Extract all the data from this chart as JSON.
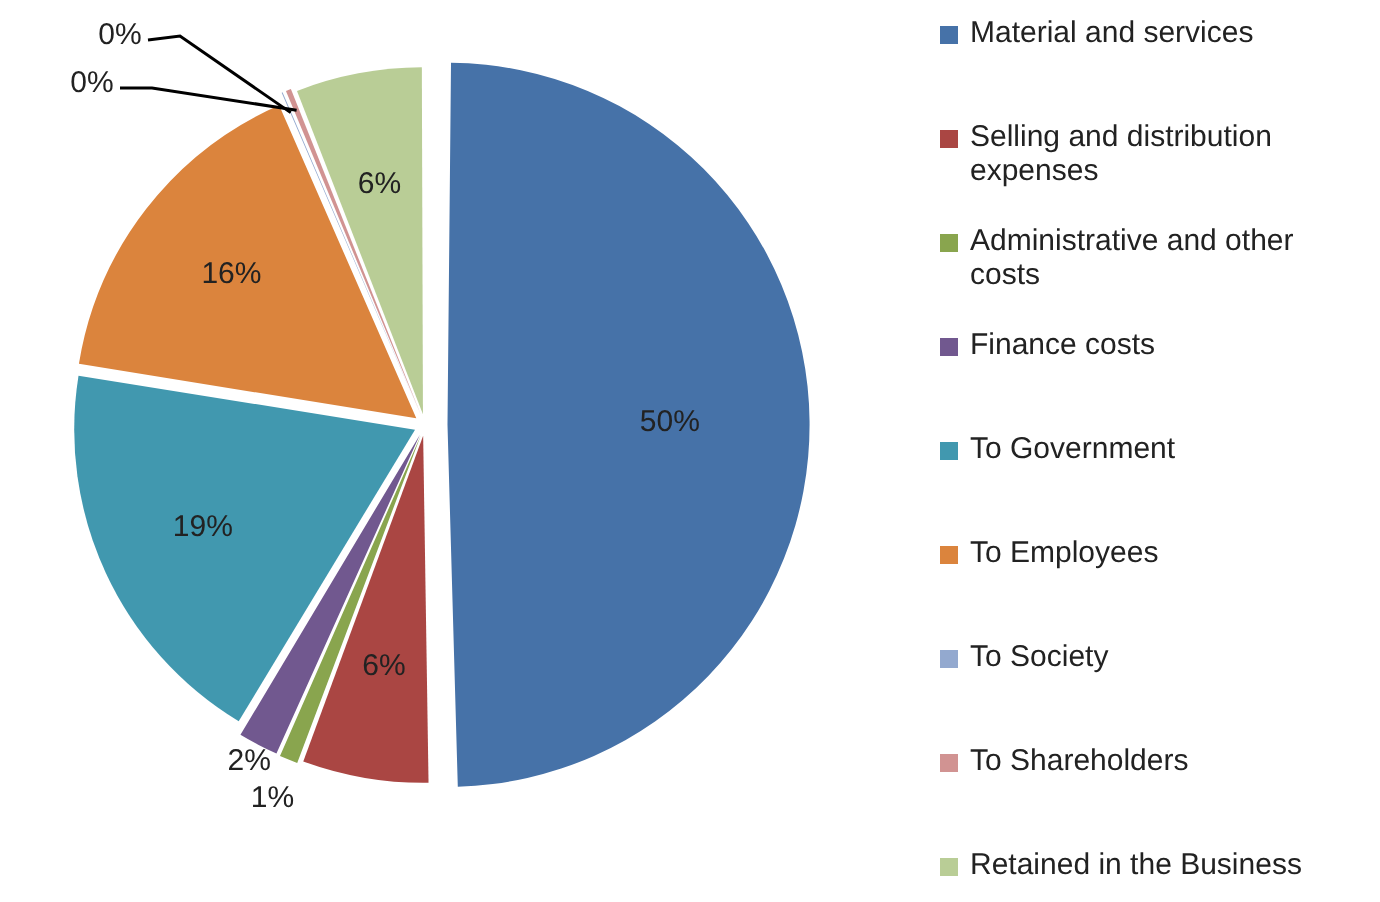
{
  "chart_data": {
    "type": "pie",
    "categories": [
      "Material and services",
      "Selling and distribution expenses",
      "Administrative and other costs",
      "Finance costs",
      "To Government",
      "To Employees",
      "To Society",
      "To Shareholders",
      "Retained in the Business"
    ],
    "values": [
      50,
      6,
      1,
      2,
      19,
      16,
      0.2,
      0.4,
      6
    ],
    "value_labels": [
      "50%",
      "6%",
      "1%",
      "2%",
      "19%",
      "16%",
      "0%",
      "0%",
      "6%"
    ],
    "colors": [
      "#4672a8",
      "#aa4643",
      "#89a54e",
      "#71588f",
      "#4198af",
      "#db843d",
      "#93a9cf",
      "#d19392",
      "#b9cd96"
    ],
    "legend": "right"
  }
}
